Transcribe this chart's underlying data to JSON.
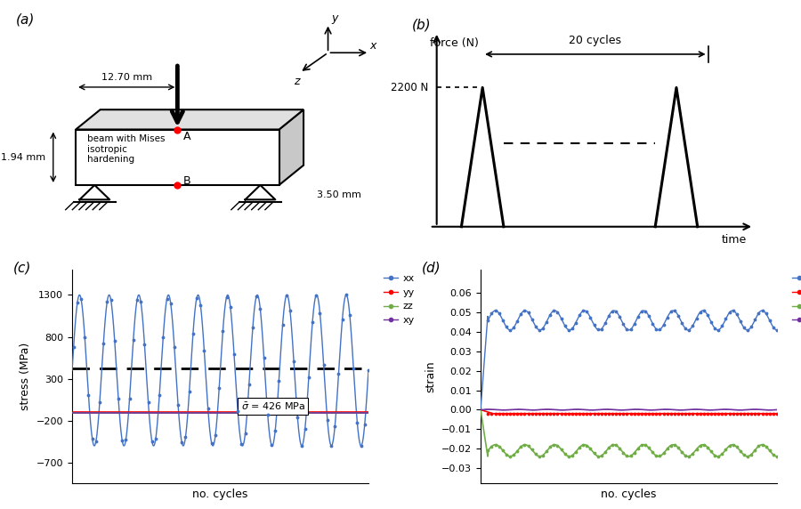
{
  "panel_a_label": "(a)",
  "panel_b_label": "(b)",
  "panel_c_label": "(c)",
  "panel_d_label": "(d)",
  "beam_dim_top": "12.70 mm",
  "beam_dim_left": "1.94 mm",
  "beam_dim_right": "3.50 mm",
  "beam_text": "beam with Mises\nisotropic\nhardening",
  "point_A": "A",
  "point_B": "B",
  "force_label": "force (N)",
  "time_label": "time",
  "cycles_label": "20 cycles",
  "force_value": "2200 N",
  "stress_ylabel": "stress (MPa)",
  "stress_xlabel": "no. cycles",
  "strain_ylabel": "strain",
  "strain_xlabel": "no. cycles",
  "stress_yticks": [
    -700,
    -200,
    300,
    800,
    1300
  ],
  "color_xx": "#4472c4",
  "color_yy": "#ff0000",
  "color_zz": "#70ad47",
  "color_xy": "#7030a0",
  "sigma_bar_value": 426,
  "num_cycles": 20,
  "background": "none"
}
